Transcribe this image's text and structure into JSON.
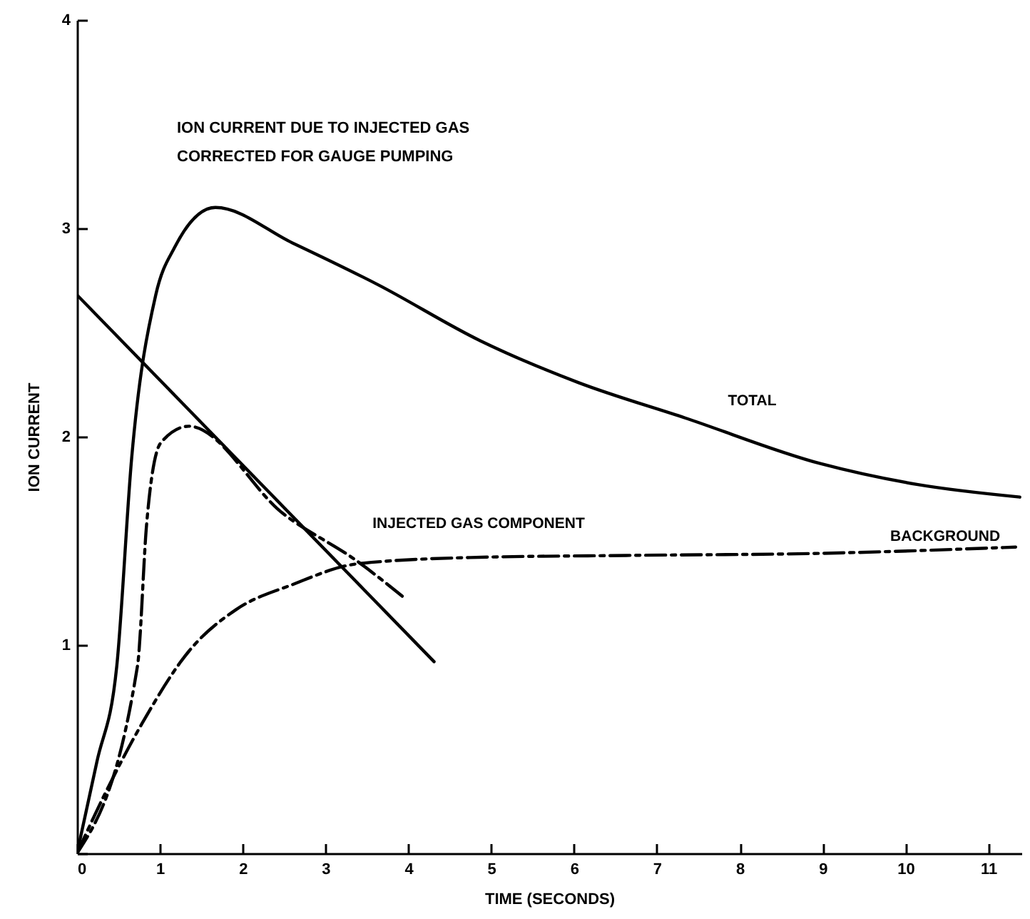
{
  "chart_data": {
    "type": "line",
    "title": "ION CURRENT DUE TO INJECTED GAS\nCORRECTED FOR GAUGE PUMPING",
    "xlabel": "TIME (SECONDS)",
    "ylabel": "ION CURRENT",
    "xlim": [
      0,
      11.4
    ],
    "xticks": [
      0,
      1,
      2,
      3,
      4,
      5,
      6,
      7,
      8,
      9,
      10,
      11
    ],
    "ylim": [
      0,
      4
    ],
    "yticks": [
      {
        "value": 0,
        "label": null
      },
      1,
      2,
      3,
      4
    ],
    "series": [
      {
        "color": "#000000",
        "line_style": "solid",
        "x": [
          0,
          0.24,
          0.48,
          0.66,
          0.95,
          1.18,
          1.67,
          2.6,
          3.63,
          4.87,
          6.05,
          7.34,
          8.98,
          10.15,
          11.38
        ],
        "values": [
          0,
          0.44,
          0.9,
          1.9,
          2.68,
          2.91,
          3.1,
          2.93,
          2.73,
          2.46,
          2.26,
          2.09,
          1.87,
          1.77,
          1.71
        ]
      },
      {
        "color": "#000000",
        "line_style": "dashed",
        "x": [
          0,
          0.73,
          0.84,
          1.01,
          1.35,
          2.49,
          3.39,
          3.97
        ],
        "values": [
          0,
          0.9,
          1.58,
          1.97,
          2.05,
          1.63,
          1.4,
          1.22
        ]
      },
      {
        "color": "#000000",
        "line_style": "solid",
        "x": [
          0,
          4.31
        ],
        "values": [
          2.68,
          0.92
        ]
      },
      {
        "color": "#000000",
        "line_style": "dashed",
        "x": [
          0,
          0.33,
          0.78,
          1.35,
          1.92,
          2.6,
          3.39,
          4.75,
          6.63,
          8.98,
          11.33
        ],
        "values": [
          0,
          0.28,
          0.62,
          0.97,
          1.17,
          1.29,
          1.39,
          1.42,
          1.43,
          1.44,
          1.47
        ]
      }
    ],
    "annotations": [
      {
        "text": "TOTAL",
        "x": 7.34,
        "y": 2.09
      },
      {
        "text": "INJECTED GAS COMPONENT",
        "x": 3.05,
        "y": 1.5
      },
      {
        "text": "BACKGROUND",
        "x": 9.3,
        "y": 1.44
      }
    ]
  }
}
